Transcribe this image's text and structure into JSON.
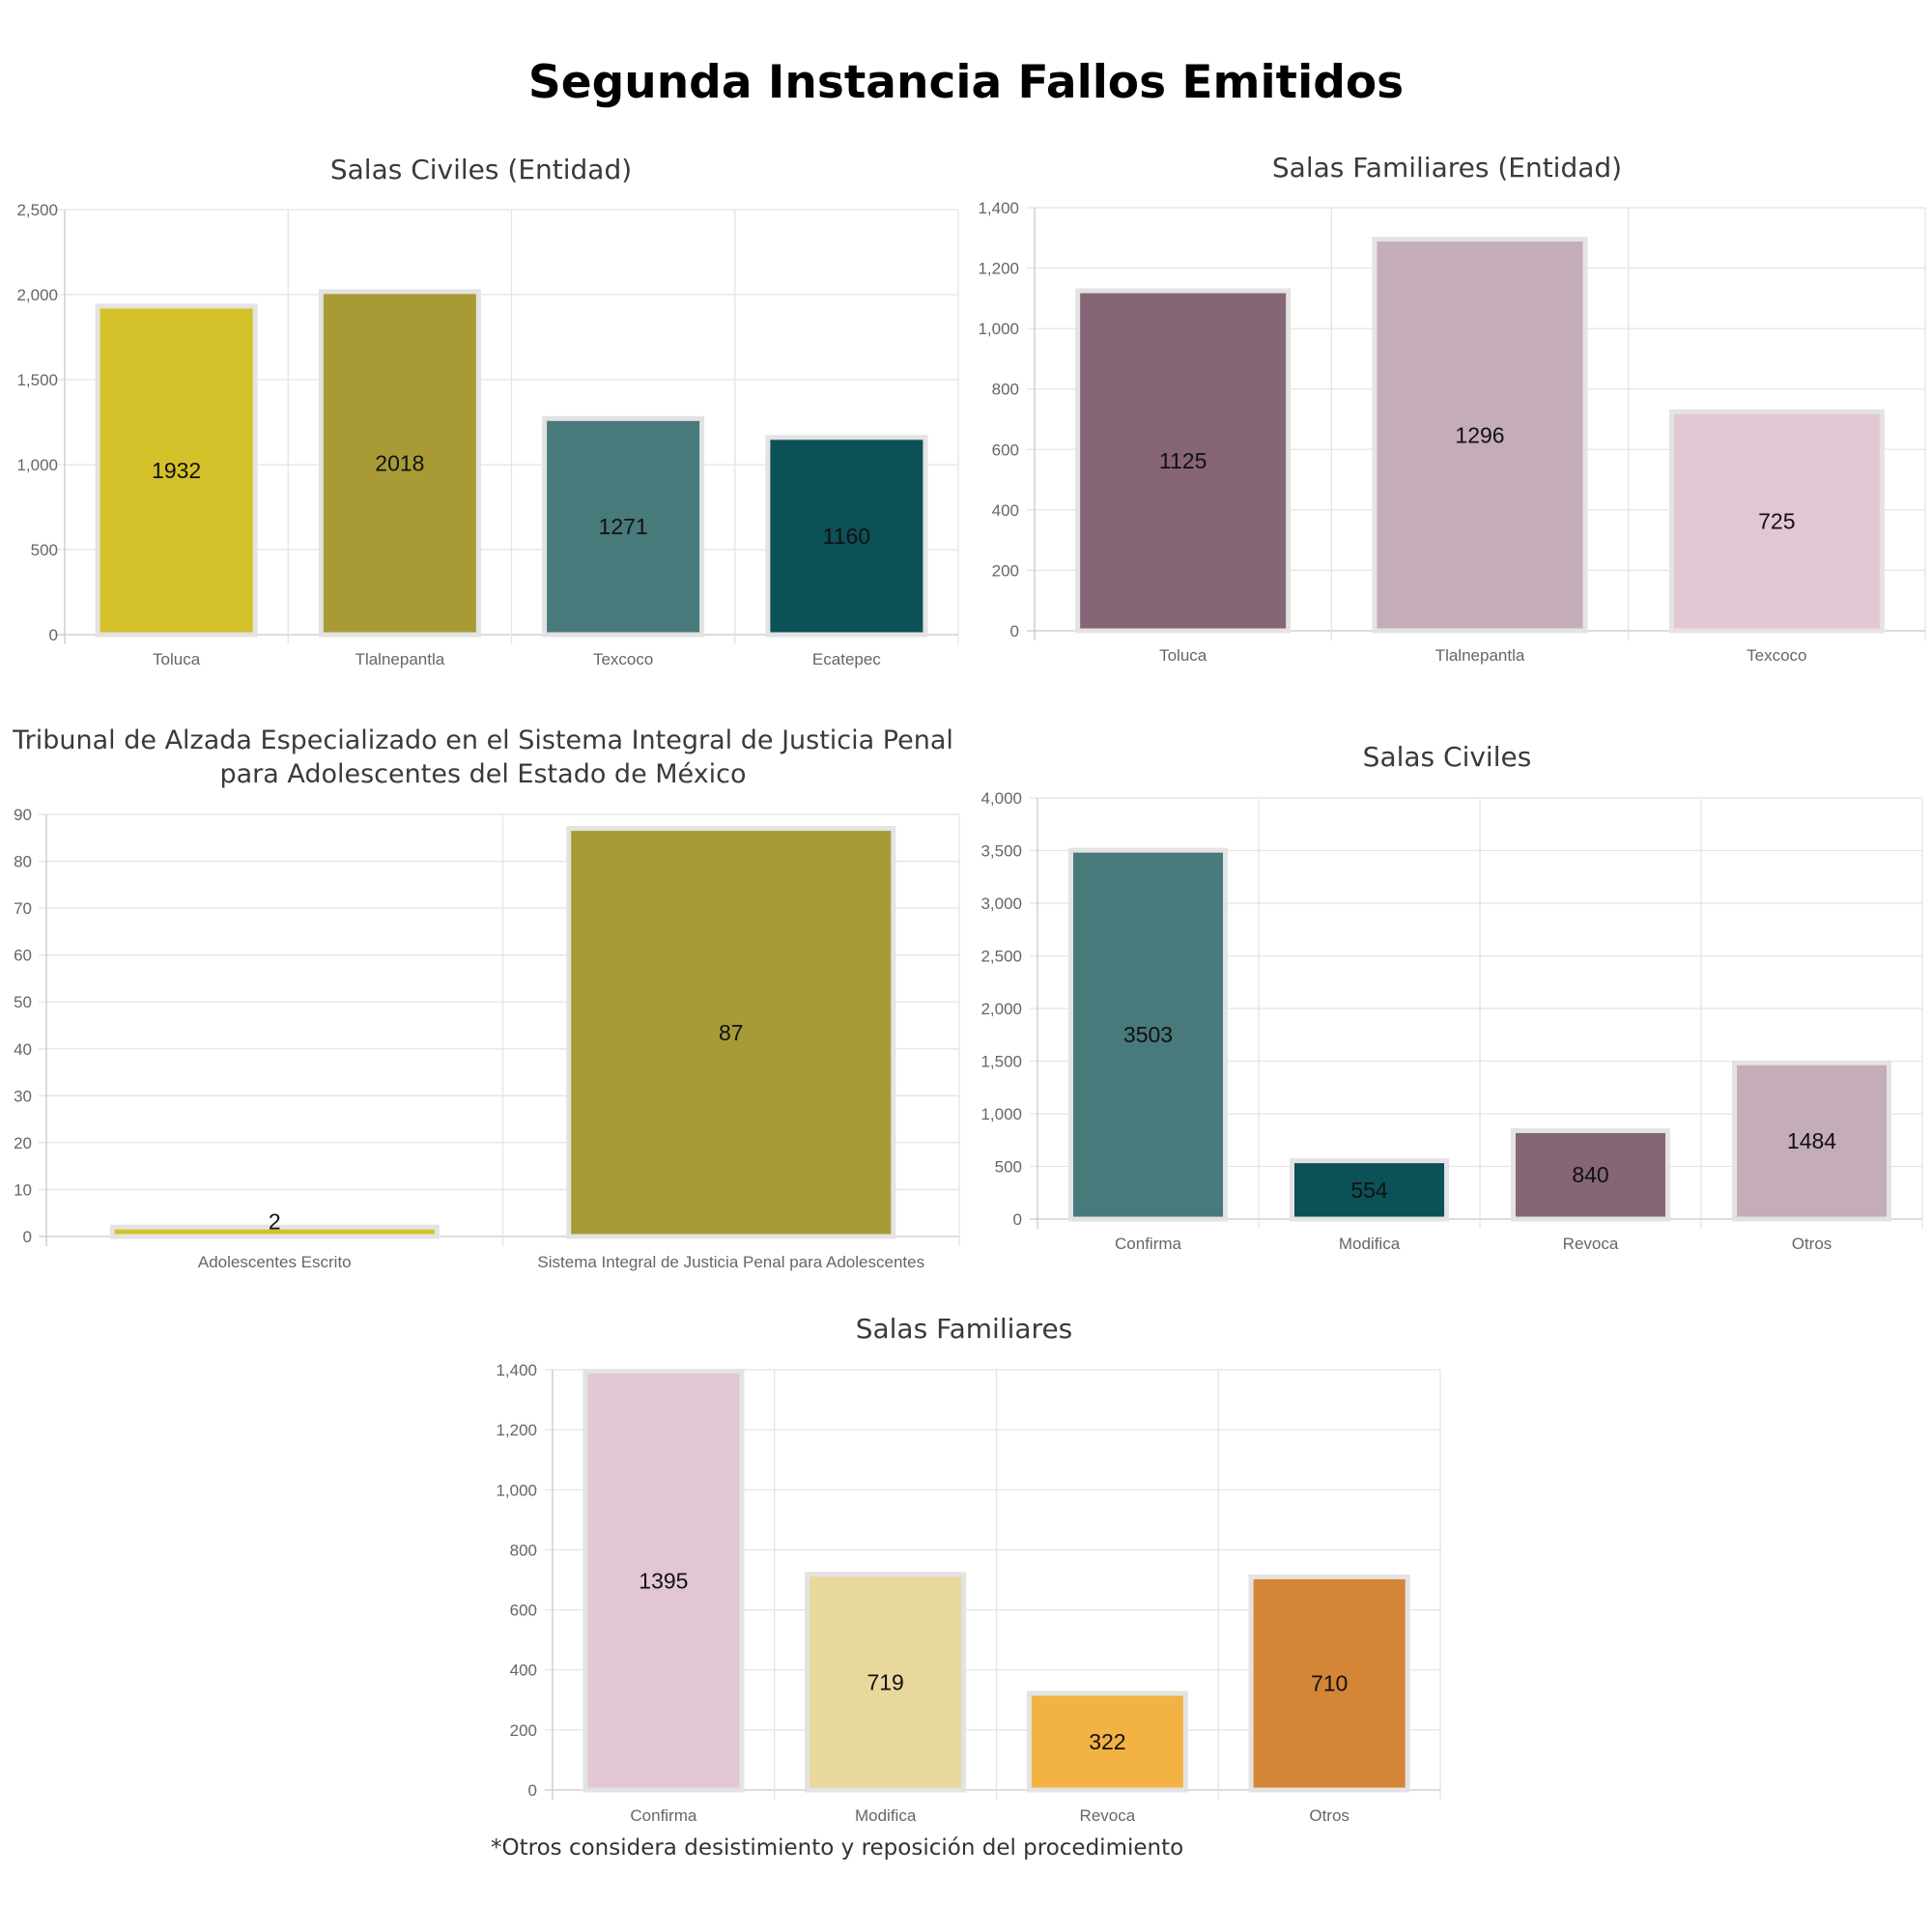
{
  "page_title": "Segunda Instancia Fallos Emitidos",
  "footnote": "*Otros considera desistimiento y reposición del procedimiento",
  "chart_data": [
    {
      "type": "bar",
      "title": [
        "Salas Civiles (Entidad)"
      ],
      "categories": [
        "Toluca",
        "Tlalnepantla",
        "Texcoco",
        "Ecatepec"
      ],
      "values": [
        1932,
        2018,
        1271,
        1160
      ],
      "colors": [
        "#d4c12a",
        "#a89b36",
        "#48797b",
        "#0b5157"
      ],
      "ylim": [
        0,
        2500
      ],
      "yticks": [
        0,
        500,
        1000,
        1500,
        2000,
        2500
      ],
      "ytick_labels": [
        "0",
        "500",
        "1,000",
        "1,500",
        "2,000",
        "2,500"
      ],
      "grid": true
    },
    {
      "type": "bar",
      "title": [
        "Salas Familiares (Entidad)"
      ],
      "categories": [
        "Toluca",
        "Tlalnepantla",
        "Texcoco"
      ],
      "values": [
        1125,
        1296,
        725
      ],
      "colors": [
        "#866577",
        "#c4acb8",
        "#e3c6d4"
      ],
      "ylim": [
        0,
        1400
      ],
      "yticks": [
        0,
        200,
        400,
        600,
        800,
        1000,
        1200,
        1400
      ],
      "ytick_labels": [
        "0",
        "200",
        "400",
        "600",
        "800",
        "1,000",
        "1,200",
        "1,400"
      ],
      "grid": true
    },
    {
      "type": "bar",
      "title": [
        "Tribunal de Alzada Especializado en el Sistema Integral de Justicia Penal",
        "para Adolescentes del Estado de México"
      ],
      "categories": [
        "Adolescentes Escrito",
        "Sistema Integral de Justicia Penal para Adolescentes"
      ],
      "values": [
        2,
        87
      ],
      "colors": [
        "#d4c12a",
        "#a89b36"
      ],
      "ylim": [
        0,
        90
      ],
      "yticks": [
        0,
        10,
        20,
        30,
        40,
        50,
        60,
        70,
        80,
        90
      ],
      "ytick_labels": [
        "0",
        "10",
        "20",
        "30",
        "40",
        "50",
        "60",
        "70",
        "80",
        "90"
      ],
      "grid": true
    },
    {
      "type": "bar",
      "title": [
        "Salas Civiles"
      ],
      "categories": [
        "Confirma",
        "Modifica",
        "Revoca",
        "Otros"
      ],
      "values": [
        3503,
        554,
        840,
        1484
      ],
      "colors": [
        "#48797b",
        "#0b5157",
        "#866577",
        "#c4acb8"
      ],
      "ylim": [
        0,
        4000
      ],
      "yticks": [
        0,
        500,
        1000,
        1500,
        2000,
        2500,
        3000,
        3500,
        4000
      ],
      "ytick_labels": [
        "0",
        "500",
        "1,000",
        "1,500",
        "2,000",
        "2,500",
        "3,000",
        "3,500",
        "4,000"
      ],
      "grid": true
    },
    {
      "type": "bar",
      "title": [
        "Salas Familiares"
      ],
      "categories": [
        "Confirma",
        "Modifica",
        "Revoca",
        "Otros"
      ],
      "values": [
        1395,
        719,
        322,
        710
      ],
      "colors": [
        "#e3c6d4",
        "#e9d89c",
        "#f2b244",
        "#d58536"
      ],
      "ylim": [
        0,
        1400
      ],
      "yticks": [
        0,
        200,
        400,
        600,
        800,
        1000,
        1200,
        1400
      ],
      "ytick_labels": [
        "0",
        "200",
        "400",
        "600",
        "800",
        "1,000",
        "1,200",
        "1,400"
      ],
      "grid": true
    }
  ]
}
